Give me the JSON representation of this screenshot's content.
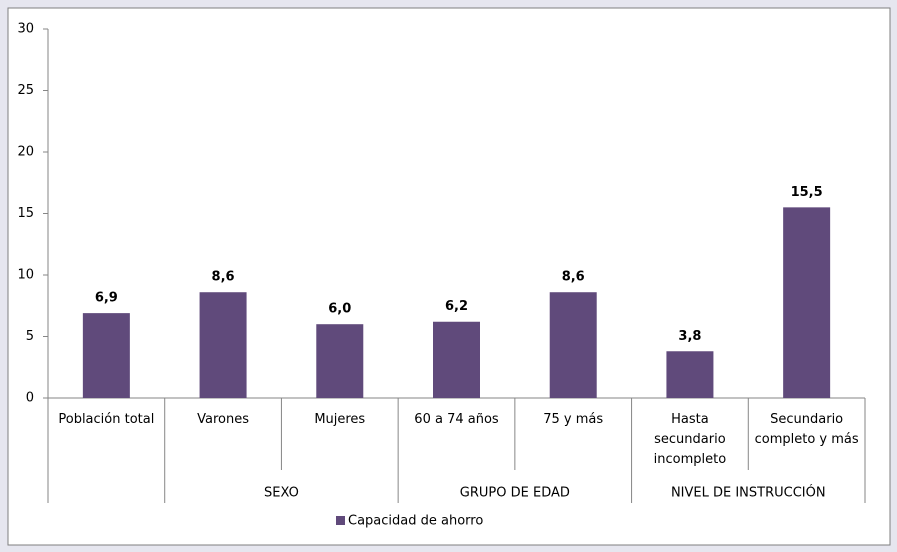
{
  "chart_data": {
    "type": "bar",
    "categories": [
      "Población total",
      "Varones",
      "Mujeres",
      "60 a 74 años",
      "75 y más",
      "Hasta secundario incompleto",
      "Secundario completo y más"
    ],
    "category_groups": [
      null,
      "SEXO",
      "SEXO",
      "GRUPO DE EDAD",
      "GRUPO DE EDAD",
      "NIVEL DE INSTRUCCIÓN",
      "NIVEL DE INSTRUCCIÓN"
    ],
    "series": [
      {
        "name": "Capacidad de ahorro",
        "color": "#604a7b",
        "values": [
          6.9,
          8.6,
          6.0,
          6.2,
          8.6,
          3.8,
          15.5
        ],
        "value_labels": [
          "6,9",
          "8,6",
          "6,0",
          "6,2",
          "8,6",
          "3,8",
          "15,5"
        ]
      }
    ],
    "ylim": [
      0,
      30
    ],
    "yticks": [
      0,
      5,
      10,
      15,
      20,
      25,
      30
    ],
    "grid": false,
    "legend": "bottom"
  }
}
